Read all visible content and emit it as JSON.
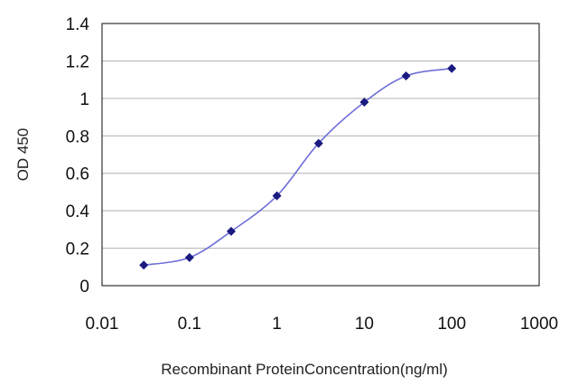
{
  "chart_data": {
    "type": "line",
    "xlabel": "Recombinant ProteinConcentration(ng/ml)",
    "ylabel": "OD 450",
    "x_scale": "log",
    "xlim": [
      0.01,
      1000
    ],
    "ylim": [
      0,
      1.4
    ],
    "x_ticks": [
      "0.01",
      "0.1",
      "1",
      "10",
      "100",
      "1000"
    ],
    "y_ticks": [
      "0",
      "0.2",
      "0.4",
      "0.6",
      "0.8",
      "1",
      "1.2",
      "1.4"
    ],
    "grid": "horizontal",
    "series": [
      {
        "x": [
          0.03,
          0.1,
          0.3,
          1,
          3,
          10,
          30,
          100
        ],
        "y": [
          0.11,
          0.15,
          0.29,
          0.48,
          0.76,
          0.98,
          1.12,
          1.16
        ]
      }
    ],
    "colors": {
      "line": "#6f6fd8",
      "marker": "#1a1a80",
      "grid": "#b0b0b0",
      "axis": "#333333"
    }
  }
}
